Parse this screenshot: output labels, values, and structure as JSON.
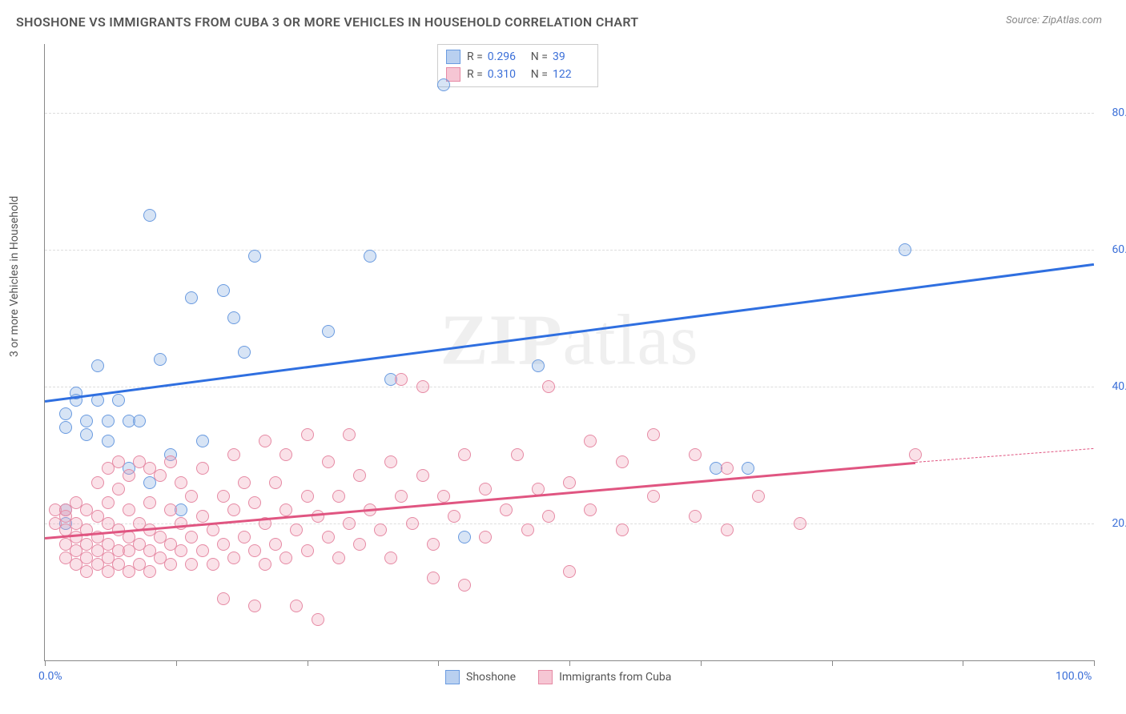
{
  "title": "SHOSHONE VS IMMIGRANTS FROM CUBA 3 OR MORE VEHICLES IN HOUSEHOLD CORRELATION CHART",
  "source_label": "Source: ZipAtlas.com",
  "watermark": "ZIPatlas",
  "chart": {
    "type": "scatter",
    "background_color": "#ffffff",
    "grid_color": "#dddddd",
    "axis_color": "#888888",
    "ylabel": "3 or more Vehicles in Household",
    "label_fontsize": 14,
    "title_fontsize": 16,
    "tick_color": "#3b6fd8",
    "xlim": [
      0,
      100
    ],
    "ylim": [
      0,
      90
    ],
    "xtick_positions": [
      0,
      12.5,
      25,
      37.5,
      50,
      62.5,
      75,
      87.5,
      100
    ],
    "xtick_labels": {
      "0": "0.0%",
      "100": "100.0%"
    },
    "ytick_positions": [
      20,
      40,
      60,
      80
    ],
    "ytick_labels": {
      "20": "20.0%",
      "40": "40.0%",
      "60": "60.0%",
      "80": "80.0%"
    },
    "point_radius": 8,
    "point_border_width": 1.5,
    "point_fill_opacity": 0.28,
    "series": [
      {
        "name": "Shoshone",
        "color_border": "#6a9be0",
        "color_fill": "rgba(130,170,225,0.32)",
        "swatch_fill": "#b9d0f0",
        "swatch_border": "#6a9be0",
        "R": "0.296",
        "N": "39",
        "trend": {
          "x0": 0,
          "y0": 38,
          "x1": 100,
          "y1": 58,
          "color": "#2f6fe0",
          "width": 2.5
        },
        "points": [
          [
            2,
            20
          ],
          [
            2,
            22
          ],
          [
            2,
            34
          ],
          [
            2,
            36
          ],
          [
            3,
            38
          ],
          [
            3,
            39
          ],
          [
            4,
            33
          ],
          [
            4,
            35
          ],
          [
            5,
            38
          ],
          [
            5,
            43
          ],
          [
            6,
            32
          ],
          [
            6,
            35
          ],
          [
            7,
            38
          ],
          [
            8,
            28
          ],
          [
            8,
            35
          ],
          [
            9,
            35
          ],
          [
            10,
            65
          ],
          [
            10,
            26
          ],
          [
            11,
            44
          ],
          [
            12,
            30
          ],
          [
            13,
            22
          ],
          [
            14,
            53
          ],
          [
            15,
            32
          ],
          [
            17,
            54
          ],
          [
            18,
            50
          ],
          [
            19,
            45
          ],
          [
            20,
            59
          ],
          [
            27,
            48
          ],
          [
            31,
            59
          ],
          [
            33,
            41
          ],
          [
            38,
            84
          ],
          [
            40,
            18
          ],
          [
            47,
            43
          ],
          [
            64,
            28
          ],
          [
            67,
            28
          ],
          [
            82,
            60
          ]
        ]
      },
      {
        "name": "Immigrants from Cuba",
        "color_border": "#e68aa4",
        "color_fill": "rgba(240,155,180,0.30)",
        "swatch_fill": "#f6c6d4",
        "swatch_border": "#e68aa4",
        "R": "0.310",
        "N": "122",
        "trend": {
          "x0": 0,
          "y0": 18,
          "x1": 83,
          "y1": 29,
          "color": "#e05581",
          "width": 2.5,
          "dashed_ext": {
            "x1": 100,
            "y1": 31
          }
        },
        "points": [
          [
            1,
            20
          ],
          [
            1,
            22
          ],
          [
            2,
            15
          ],
          [
            2,
            17
          ],
          [
            2,
            19
          ],
          [
            2,
            21
          ],
          [
            2,
            22
          ],
          [
            3,
            14
          ],
          [
            3,
            16
          ],
          [
            3,
            18
          ],
          [
            3,
            20
          ],
          [
            3,
            23
          ],
          [
            4,
            13
          ],
          [
            4,
            15
          ],
          [
            4,
            17
          ],
          [
            4,
            19
          ],
          [
            4,
            22
          ],
          [
            5,
            14
          ],
          [
            5,
            16
          ],
          [
            5,
            18
          ],
          [
            5,
            21
          ],
          [
            5,
            26
          ],
          [
            6,
            13
          ],
          [
            6,
            15
          ],
          [
            6,
            17
          ],
          [
            6,
            20
          ],
          [
            6,
            23
          ],
          [
            6,
            28
          ],
          [
            7,
            14
          ],
          [
            7,
            16
          ],
          [
            7,
            19
          ],
          [
            7,
            25
          ],
          [
            7,
            29
          ],
          [
            8,
            13
          ],
          [
            8,
            16
          ],
          [
            8,
            18
          ],
          [
            8,
            22
          ],
          [
            8,
            27
          ],
          [
            9,
            14
          ],
          [
            9,
            17
          ],
          [
            9,
            20
          ],
          [
            9,
            29
          ],
          [
            10,
            13
          ],
          [
            10,
            16
          ],
          [
            10,
            19
          ],
          [
            10,
            23
          ],
          [
            10,
            28
          ],
          [
            11,
            15
          ],
          [
            11,
            18
          ],
          [
            11,
            27
          ],
          [
            12,
            14
          ],
          [
            12,
            17
          ],
          [
            12,
            22
          ],
          [
            12,
            29
          ],
          [
            13,
            16
          ],
          [
            13,
            20
          ],
          [
            13,
            26
          ],
          [
            14,
            14
          ],
          [
            14,
            18
          ],
          [
            14,
            24
          ],
          [
            15,
            16
          ],
          [
            15,
            21
          ],
          [
            15,
            28
          ],
          [
            16,
            14
          ],
          [
            16,
            19
          ],
          [
            17,
            9
          ],
          [
            17,
            17
          ],
          [
            17,
            24
          ],
          [
            18,
            15
          ],
          [
            18,
            22
          ],
          [
            18,
            30
          ],
          [
            19,
            18
          ],
          [
            19,
            26
          ],
          [
            20,
            8
          ],
          [
            20,
            16
          ],
          [
            20,
            23
          ],
          [
            21,
            14
          ],
          [
            21,
            20
          ],
          [
            21,
            32
          ],
          [
            22,
            17
          ],
          [
            22,
            26
          ],
          [
            23,
            15
          ],
          [
            23,
            22
          ],
          [
            23,
            30
          ],
          [
            24,
            8
          ],
          [
            24,
            19
          ],
          [
            25,
            16
          ],
          [
            25,
            24
          ],
          [
            25,
            33
          ],
          [
            26,
            6
          ],
          [
            26,
            21
          ],
          [
            27,
            18
          ],
          [
            27,
            29
          ],
          [
            28,
            15
          ],
          [
            28,
            24
          ],
          [
            29,
            20
          ],
          [
            29,
            33
          ],
          [
            30,
            17
          ],
          [
            30,
            27
          ],
          [
            31,
            22
          ],
          [
            32,
            19
          ],
          [
            33,
            15
          ],
          [
            33,
            29
          ],
          [
            34,
            24
          ],
          [
            34,
            41
          ],
          [
            35,
            20
          ],
          [
            36,
            27
          ],
          [
            36,
            40
          ],
          [
            37,
            17
          ],
          [
            37,
            12
          ],
          [
            38,
            24
          ],
          [
            39,
            21
          ],
          [
            40,
            11
          ],
          [
            40,
            30
          ],
          [
            42,
            18
          ],
          [
            42,
            25
          ],
          [
            44,
            22
          ],
          [
            45,
            30
          ],
          [
            46,
            19
          ],
          [
            47,
            25
          ],
          [
            48,
            21
          ],
          [
            48,
            40
          ],
          [
            50,
            13
          ],
          [
            50,
            26
          ],
          [
            52,
            22
          ],
          [
            52,
            32
          ],
          [
            55,
            19
          ],
          [
            55,
            29
          ],
          [
            58,
            24
          ],
          [
            58,
            33
          ],
          [
            62,
            21
          ],
          [
            62,
            30
          ],
          [
            65,
            19
          ],
          [
            65,
            28
          ],
          [
            68,
            24
          ],
          [
            72,
            20
          ],
          [
            83,
            30
          ]
        ]
      }
    ],
    "legend_top": {
      "rows": [
        {
          "series_idx": 0,
          "R_label": "R =",
          "N_label": "N ="
        },
        {
          "series_idx": 1,
          "R_label": "R =",
          "N_label": "N ="
        }
      ]
    },
    "legend_bottom": [
      {
        "series_idx": 0
      },
      {
        "series_idx": 1
      }
    ]
  }
}
